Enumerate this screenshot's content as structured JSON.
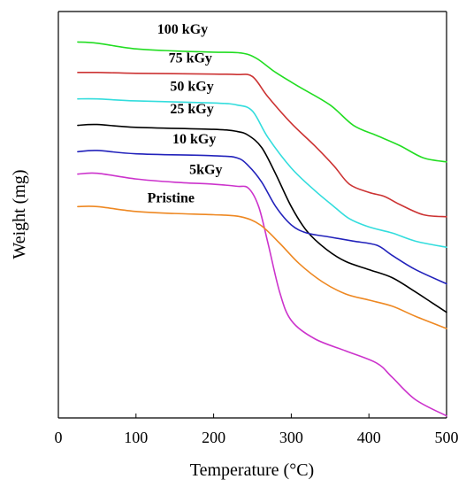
{
  "chart_data": {
    "type": "line",
    "xlabel": "Temperature (°C)",
    "ylabel": "Weight (mg)",
    "xlim": [
      0,
      500
    ],
    "ylim": [
      0,
      100
    ],
    "xticks": [
      0,
      100,
      200,
      300,
      400,
      500
    ],
    "grid": false,
    "series": [
      {
        "name": "100 kGy",
        "color": "#22dd22",
        "label_at": [
          160,
          94.5
        ],
        "points": [
          [
            25,
            92.5
          ],
          [
            50,
            92.2
          ],
          [
            100,
            90.8
          ],
          [
            150,
            90.3
          ],
          [
            200,
            90.0
          ],
          [
            235,
            89.8
          ],
          [
            255,
            88.5
          ],
          [
            280,
            85.0
          ],
          [
            310,
            81.5
          ],
          [
            350,
            77.0
          ],
          [
            380,
            72.0
          ],
          [
            410,
            69.5
          ],
          [
            440,
            67.0
          ],
          [
            470,
            64.0
          ],
          [
            500,
            63.0
          ]
        ]
      },
      {
        "name": "75 kGy",
        "color": "#cc3333",
        "label_at": [
          170,
          87.5
        ],
        "points": [
          [
            25,
            85.0
          ],
          [
            50,
            85.0
          ],
          [
            100,
            84.8
          ],
          [
            200,
            84.6
          ],
          [
            230,
            84.5
          ],
          [
            250,
            84.0
          ],
          [
            270,
            79.0
          ],
          [
            300,
            72.5
          ],
          [
            330,
            67.0
          ],
          [
            355,
            62.0
          ],
          [
            375,
            57.5
          ],
          [
            400,
            55.5
          ],
          [
            420,
            54.5
          ],
          [
            440,
            52.5
          ],
          [
            470,
            50.0
          ],
          [
            500,
            49.5
          ]
        ]
      },
      {
        "name": "50 kGy",
        "color": "#33dddd",
        "label_at": [
          172,
          80.5
        ],
        "points": [
          [
            25,
            78.5
          ],
          [
            50,
            78.5
          ],
          [
            100,
            78.0
          ],
          [
            200,
            77.5
          ],
          [
            230,
            77.0
          ],
          [
            250,
            75.5
          ],
          [
            270,
            69.0
          ],
          [
            300,
            61.5
          ],
          [
            330,
            56.0
          ],
          [
            355,
            52.0
          ],
          [
            375,
            49.0
          ],
          [
            400,
            47.0
          ],
          [
            430,
            45.5
          ],
          [
            460,
            43.5
          ],
          [
            500,
            42.0
          ]
        ]
      },
      {
        "name": "25 kGy",
        "color": "#000000",
        "label_at": [
          172,
          75.0
        ],
        "points": [
          [
            25,
            72.0
          ],
          [
            50,
            72.2
          ],
          [
            100,
            71.5
          ],
          [
            200,
            71.0
          ],
          [
            230,
            70.5
          ],
          [
            245,
            69.5
          ],
          [
            262,
            66.5
          ],
          [
            280,
            60.0
          ],
          [
            300,
            52.0
          ],
          [
            320,
            46.0
          ],
          [
            345,
            41.5
          ],
          [
            370,
            38.5
          ],
          [
            400,
            36.5
          ],
          [
            430,
            34.5
          ],
          [
            460,
            31.0
          ],
          [
            480,
            28.5
          ],
          [
            500,
            26.0
          ]
        ]
      },
      {
        "name": "10 kGy",
        "color": "#2222bb",
        "label_at": [
          175,
          67.5
        ],
        "points": [
          [
            25,
            65.5
          ],
          [
            50,
            65.8
          ],
          [
            100,
            65.0
          ],
          [
            200,
            64.5
          ],
          [
            230,
            64.0
          ],
          [
            245,
            62.0
          ],
          [
            262,
            58.0
          ],
          [
            280,
            52.0
          ],
          [
            300,
            47.5
          ],
          [
            320,
            45.5
          ],
          [
            350,
            44.5
          ],
          [
            380,
            43.5
          ],
          [
            410,
            42.5
          ],
          [
            430,
            40.0
          ],
          [
            460,
            36.5
          ],
          [
            500,
            33.0
          ]
        ]
      },
      {
        "name": "5kGy",
        "color": "#cc33cc",
        "label_at": [
          190,
          60.0
        ],
        "points": [
          [
            25,
            60.0
          ],
          [
            50,
            60.2
          ],
          [
            100,
            58.8
          ],
          [
            150,
            58.0
          ],
          [
            200,
            57.5
          ],
          [
            230,
            57.0
          ],
          [
            245,
            56.5
          ],
          [
            258,
            52.0
          ],
          [
            270,
            43.0
          ],
          [
            285,
            31.0
          ],
          [
            300,
            24.0
          ],
          [
            330,
            19.5
          ],
          [
            370,
            16.5
          ],
          [
            410,
            13.5
          ],
          [
            430,
            10.0
          ],
          [
            460,
            4.5
          ],
          [
            500,
            0.5
          ]
        ]
      },
      {
        "name": "Pristine",
        "color": "#ee8822",
        "label_at": [
          145,
          53.0
        ],
        "points": [
          [
            25,
            52.0
          ],
          [
            50,
            52.0
          ],
          [
            100,
            50.8
          ],
          [
            150,
            50.3
          ],
          [
            200,
            50.0
          ],
          [
            235,
            49.5
          ],
          [
            260,
            47.5
          ],
          [
            285,
            43.0
          ],
          [
            310,
            38.0
          ],
          [
            340,
            33.5
          ],
          [
            370,
            30.5
          ],
          [
            400,
            29.0
          ],
          [
            430,
            27.5
          ],
          [
            460,
            25.0
          ],
          [
            500,
            22.0
          ]
        ]
      }
    ]
  }
}
